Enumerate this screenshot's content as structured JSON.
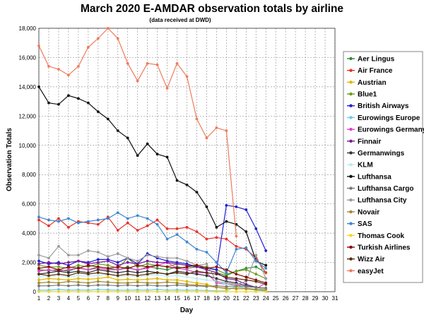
{
  "chart_data": {
    "type": "line",
    "title": "March 2020 E-AMDAR observation totals by airline",
    "subtitle": "(data received at DWD)",
    "xlabel": "Day",
    "ylabel": "Observation Totals",
    "xlim": [
      1,
      31
    ],
    "ylim": [
      0,
      18000
    ],
    "x_ticks": [
      1,
      2,
      3,
      4,
      5,
      6,
      7,
      8,
      9,
      10,
      11,
      12,
      13,
      14,
      15,
      16,
      17,
      18,
      19,
      20,
      21,
      22,
      23,
      24,
      25,
      26,
      27,
      28,
      29,
      30,
      31
    ],
    "y_ticks": [
      0,
      2000,
      4000,
      6000,
      8000,
      10000,
      12000,
      14000,
      16000,
      18000
    ],
    "y_tick_labels": [
      "0",
      "2,000",
      "4,000",
      "6,000",
      "8,000",
      "10,000",
      "12,000",
      "14,000",
      "16,000",
      "18,000"
    ],
    "grid": true,
    "legend_position": "right",
    "x": [
      1,
      2,
      3,
      4,
      5,
      6,
      7,
      8,
      9,
      10,
      11,
      12,
      13,
      14,
      15,
      16,
      17,
      18,
      19,
      20,
      21,
      22,
      23,
      24
    ],
    "series": [
      {
        "name": "Aer Lingus",
        "color": "#2e8b3a",
        "values": [
          1500,
          1450,
          1500,
          1400,
          1650,
          1500,
          1700,
          1600,
          1500,
          1700,
          1450,
          1700,
          1600,
          1500,
          1700,
          1600,
          1700,
          1500,
          1300,
          1100,
          1400,
          1600,
          1700,
          1300
        ]
      },
      {
        "name": "Air France",
        "color": "#e8312a",
        "values": [
          4900,
          4500,
          5000,
          4400,
          4800,
          4700,
          4600,
          5100,
          4200,
          4700,
          4200,
          4500,
          4900,
          4300,
          4300,
          4400,
          4100,
          3600,
          3700,
          3600,
          3100,
          2900,
          2300,
          1300
        ]
      },
      {
        "name": "Austrian",
        "color": "#e3b600",
        "values": [
          800,
          900,
          850,
          800,
          900,
          850,
          900,
          1000,
          800,
          850,
          800,
          850,
          900,
          800,
          800,
          700,
          600,
          500,
          300,
          200,
          300,
          250,
          200,
          150
        ]
      },
      {
        "name": "Blue1",
        "color": "#6b9c1f",
        "values": [
          1800,
          1700,
          1700,
          1600,
          1800,
          1700,
          1900,
          1800,
          1600,
          2300,
          1700,
          1900,
          1800,
          1700,
          1900,
          1800,
          1800,
          1700,
          1500,
          1200,
          1400,
          1500,
          1200,
          900
        ]
      },
      {
        "name": "British Airways",
        "color": "#1f1fd6",
        "values": [
          2100,
          1900,
          2000,
          1800,
          2100,
          2000,
          2200,
          2200,
          2000,
          2300,
          1900,
          2600,
          2300,
          2100,
          2000,
          1900,
          1700,
          1600,
          1500,
          5900,
          5800,
          5600,
          4300,
          2800
        ]
      },
      {
        "name": "Eurowings Europe",
        "color": "#66ccee",
        "values": [
          100,
          100,
          150,
          100,
          120,
          100,
          150,
          120,
          100,
          100,
          120,
          100,
          150,
          100,
          120,
          100,
          100,
          80,
          50,
          50,
          400,
          200,
          100,
          50
        ]
      },
      {
        "name": "Eurowings Germany",
        "color": "#e040c8",
        "values": [
          1400,
          1500,
          1400,
          1500,
          1600,
          1500,
          1600,
          1500,
          1500,
          1600,
          1500,
          1600,
          1800,
          2000,
          1600,
          1500,
          1300,
          1300,
          600,
          500,
          500,
          300,
          200,
          600
        ]
      },
      {
        "name": "Finnair",
        "color": "#7a1a9c",
        "values": [
          1900,
          2000,
          1900,
          2000,
          2100,
          1900,
          2000,
          2100,
          1800,
          2000,
          1900,
          2100,
          2000,
          2000,
          1900,
          1800,
          1700,
          1500,
          1300,
          900,
          800,
          500,
          300,
          200
        ]
      },
      {
        "name": "Germanwings",
        "color": "#333333",
        "values": [
          1200,
          1300,
          1400,
          1300,
          1400,
          1300,
          1500,
          1400,
          1300,
          1400,
          1300,
          1400,
          1300,
          1200,
          1400,
          1300,
          1200,
          1100,
          900,
          700,
          600,
          400,
          300,
          200
        ]
      },
      {
        "name": "KLM",
        "color": "#b8ecf2",
        "values": [
          1000,
          1050,
          1100,
          1000,
          1100,
          1050,
          1100,
          1200,
          1000,
          1100,
          1000,
          1100,
          1150,
          1050,
          1100,
          1000,
          900,
          800,
          700,
          500,
          400,
          300,
          200,
          200
        ]
      },
      {
        "name": "Lufthansa",
        "color": "#111111",
        "values": [
          14000,
          12900,
          12800,
          13400,
          13200,
          12900,
          12300,
          11800,
          11000,
          10500,
          9300,
          10100,
          9400,
          9200,
          7600,
          7300,
          6800,
          5800,
          4400,
          4800,
          4600,
          4100,
          2100,
          1800
        ]
      },
      {
        "name": "Lufthansa Cargo",
        "color": "#777777",
        "values": [
          400,
          400,
          450,
          400,
          450,
          400,
          450,
          450,
          400,
          450,
          400,
          450,
          400,
          400,
          450,
          400,
          400,
          350,
          400,
          350,
          400,
          350,
          300,
          250
        ]
      },
      {
        "name": "Lufthansa City",
        "color": "#9a9a9a",
        "values": [
          2500,
          2300,
          3100,
          2500,
          2500,
          2800,
          2700,
          2400,
          2600,
          2300,
          2100,
          2500,
          2400,
          2300,
          2300,
          2100,
          1800,
          1900,
          700,
          600,
          500,
          700,
          2500,
          900
        ]
      },
      {
        "name": "Novair",
        "color": "#a08a36",
        "values": [
          600,
          650,
          600,
          700,
          650,
          600,
          700,
          650,
          600,
          600,
          650,
          600,
          600,
          650,
          600,
          500,
          450,
          400,
          300,
          250,
          200,
          200,
          150,
          100
        ]
      },
      {
        "name": "SAS",
        "color": "#3b86d1",
        "values": [
          5100,
          4900,
          4800,
          5000,
          4700,
          4800,
          4900,
          5000,
          5400,
          5000,
          5200,
          5000,
          4600,
          3600,
          3900,
          3400,
          2900,
          2700,
          2000,
          1300,
          2900,
          3000,
          2100,
          1600
        ]
      },
      {
        "name": "Thomas Cook",
        "color": "#ffd21f",
        "values": [
          0,
          0,
          0,
          0,
          0,
          0,
          0,
          0,
          0,
          0,
          0,
          0,
          0,
          0,
          0,
          0,
          0,
          0,
          0,
          0,
          0,
          0,
          0,
          0
        ]
      },
      {
        "name": "Turkish Airlines",
        "color": "#8b0000",
        "values": [
          1600,
          1700,
          1500,
          1700,
          1600,
          1800,
          1700,
          1600,
          1700,
          1600,
          1800,
          1700,
          1800,
          1700,
          1600,
          1700,
          1800,
          1600,
          1700,
          1500,
          1200,
          1000,
          800,
          600
        ]
      },
      {
        "name": "Wizz Air",
        "color": "#5a2d0c",
        "values": [
          1200,
          1100,
          1200,
          1100,
          1300,
          1200,
          1300,
          1200,
          1100,
          1200,
          1100,
          1200,
          1300,
          1200,
          1300,
          1200,
          1400,
          1300,
          1200,
          1000,
          900,
          800,
          700,
          500
        ]
      },
      {
        "name": "easyJet",
        "color": "#f07a5a",
        "values": [
          16800,
          15400,
          15200,
          14800,
          15400,
          16700,
          17300,
          18000,
          17300,
          15600,
          14400,
          15600,
          15500,
          13900,
          15600,
          14700,
          11800,
          10500,
          11200,
          11000,
          3800,
          null,
          null,
          null
        ]
      }
    ]
  }
}
